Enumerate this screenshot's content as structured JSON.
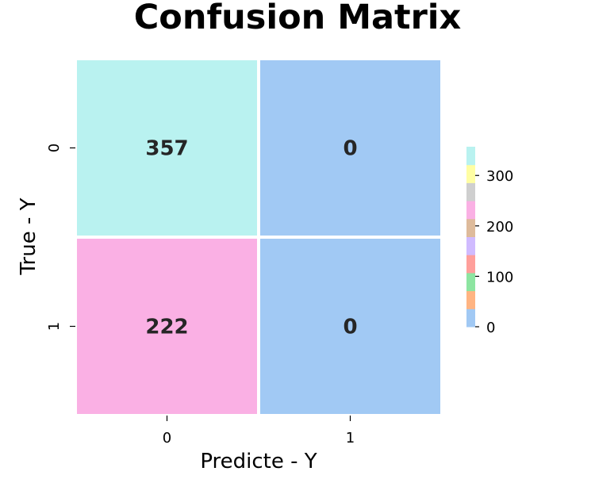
{
  "chart_data": {
    "type": "heatmap",
    "title": "Confusion Matrix",
    "xlabel": "Predicte - Y",
    "ylabel": "True - Y",
    "x_categories": [
      "0",
      "1"
    ],
    "y_categories": [
      "0",
      "1"
    ],
    "values": [
      [
        357,
        0
      ],
      [
        222,
        0
      ]
    ],
    "cell_labels": [
      [
        "357",
        "0"
      ],
      [
        "222",
        "0"
      ]
    ],
    "colorbar": {
      "range": [
        0,
        357
      ],
      "ticks": [
        0,
        100,
        200,
        300
      ],
      "tick_labels": [
        "0",
        "100",
        "200",
        "300"
      ],
      "palette": [
        "#a1c9f4",
        "#ffb482",
        "#8de5a1",
        "#ff9f9b",
        "#d0bbff",
        "#debb9b",
        "#fab0e4",
        "#cfcfcf",
        "#fffea3",
        "#b9f2f0"
      ]
    },
    "legend": "colorbar-right"
  }
}
